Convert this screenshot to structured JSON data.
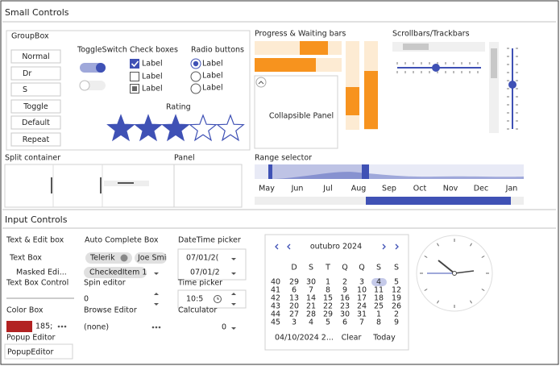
{
  "small_controls": {
    "title": "Small Controls",
    "groupbox": {
      "title": "GroupBox",
      "buttons": [
        "Normal",
        "Dr",
        "S",
        "Toggle",
        "Default",
        "Repeat"
      ]
    },
    "toggle_switch": {
      "title": "ToggleSwitch"
    },
    "check_boxes": {
      "title": "Check boxes",
      "labels": [
        "Label",
        "Label",
        "Label"
      ]
    },
    "radio_buttons": {
      "title": "Radio buttons",
      "labels": [
        "Label",
        "Label",
        "Label"
      ]
    },
    "rating": {
      "title": "Rating",
      "value": 3,
      "max": 5
    },
    "progress": {
      "title": "Progress & Waiting bars",
      "collapsible_panel": "Collapsible Panel"
    },
    "scrollbars": {
      "title": "Scrollbars/Trackbars"
    },
    "split_container": {
      "title": "Split container"
    },
    "panel": {
      "title": "Panel"
    },
    "range_selector": {
      "title": "Range selector",
      "months": [
        "May",
        "Jun",
        "Jul",
        "Aug",
        "Sep",
        "Oct",
        "Nov",
        "Dec",
        "Jan"
      ]
    }
  },
  "input_controls": {
    "title": "Input Controls",
    "text_edit": {
      "title": "Text & Edit box",
      "text_box": "Text Box",
      "masked": "Masked Edi...",
      "text_box_control": "Text Box Control"
    },
    "color_box": {
      "title": "Color Box",
      "value": "185;"
    },
    "popup_editor": {
      "title": "Popup Editor",
      "value": "PopupEditor"
    },
    "auto_complete": {
      "title": "Auto Complete Box",
      "tokens": [
        "Telerik",
        "Joe Smi"
      ],
      "checked_item": "CheckedItem 1"
    },
    "spin_editor": {
      "title": "Spin editor",
      "value": 0
    },
    "browse_editor": {
      "title": "Browse Editor",
      "value": "(none)"
    },
    "datetime_picker": {
      "title": "DateTime picker",
      "values": [
        "07/01/2(",
        "07/01/2"
      ]
    },
    "time_picker": {
      "title": "Time picker",
      "value": "10:5"
    },
    "calculator": {
      "title": "Calculator",
      "value": 0
    },
    "calendar": {
      "month": "outubro 2024",
      "day_headers": [
        "D",
        "S",
        "T",
        "Q",
        "Q",
        "S",
        "S"
      ],
      "weeks": [
        40,
        41,
        42,
        43,
        44,
        45
      ],
      "days": [
        [
          29,
          30,
          1,
          2,
          3,
          4,
          5
        ],
        [
          6,
          7,
          8,
          9,
          10,
          11,
          12
        ],
        [
          13,
          14,
          15,
          16,
          17,
          18,
          19
        ],
        [
          20,
          21,
          22,
          23,
          24,
          25,
          26
        ],
        [
          27,
          28,
          29,
          30,
          31,
          1,
          2
        ],
        [
          3,
          4,
          5,
          6,
          7,
          8,
          9
        ]
      ],
      "footer_date": "04/10/2024 2...",
      "clear": "Clear",
      "today": "Today"
    }
  }
}
